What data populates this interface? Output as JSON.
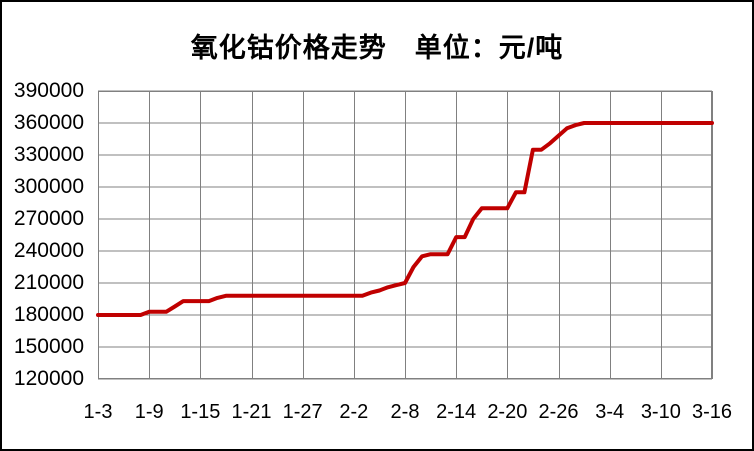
{
  "title": "氧化钴价格走势　单位：元/吨",
  "colors": {
    "line": "#C00000",
    "grid": "#808080",
    "plot_border": "#808080",
    "frame_border": "#000000",
    "background": "#FFFFFF",
    "text": "#000000"
  },
  "chart_data": {
    "type": "line",
    "title": "氧化钴价格走势　单位：元/吨",
    "unit": "元/吨",
    "xlabel": "",
    "ylabel": "",
    "ylim": [
      120000,
      390000
    ],
    "y_ticks": [
      120000,
      150000,
      180000,
      210000,
      240000,
      270000,
      300000,
      330000,
      360000,
      390000
    ],
    "y_tick_labels": [
      "120000",
      "150000",
      "180000",
      "210000",
      "240000",
      "270000",
      "300000",
      "330000",
      "360000",
      "390000"
    ],
    "x_tick_labels": [
      "1-3",
      "1-9",
      "1-15",
      "1-21",
      "1-27",
      "2-2",
      "2-8",
      "2-14",
      "2-20",
      "2-26",
      "3-4",
      "3-10",
      "3-16"
    ],
    "x_tick_interval_days": 6,
    "grid": true,
    "legend": false,
    "series": [
      {
        "name": "氧化钴价格",
        "x": [
          "1-3",
          "1-4",
          "1-5",
          "1-6",
          "1-7",
          "1-8",
          "1-9",
          "1-10",
          "1-11",
          "1-12",
          "1-13",
          "1-14",
          "1-15",
          "1-16",
          "1-17",
          "1-18",
          "1-19",
          "1-20",
          "1-21",
          "1-22",
          "1-23",
          "1-24",
          "1-25",
          "1-26",
          "1-27",
          "1-28",
          "1-29",
          "1-30",
          "1-31",
          "2-1",
          "2-2",
          "2-3",
          "2-4",
          "2-5",
          "2-6",
          "2-7",
          "2-8",
          "2-9",
          "2-10",
          "2-11",
          "2-12",
          "2-13",
          "2-14",
          "2-15",
          "2-16",
          "2-17",
          "2-18",
          "2-19",
          "2-20",
          "2-21",
          "2-22",
          "2-23",
          "2-24",
          "2-25",
          "2-26",
          "2-27",
          "2-28",
          "3-1",
          "3-2",
          "3-3",
          "3-4",
          "3-5",
          "3-6",
          "3-7",
          "3-8",
          "3-9",
          "3-10",
          "3-11",
          "3-12",
          "3-13",
          "3-14",
          "3-15",
          "3-16"
        ],
        "values": [
          180000,
          180000,
          180000,
          180000,
          180000,
          180000,
          183000,
          183000,
          183000,
          188000,
          193000,
          193000,
          193000,
          193000,
          196000,
          198000,
          198000,
          198000,
          198000,
          198000,
          198000,
          198000,
          198000,
          198000,
          198000,
          198000,
          198000,
          198000,
          198000,
          198000,
          198000,
          198000,
          201000,
          203000,
          206000,
          208000,
          210000,
          225000,
          235000,
          237000,
          237000,
          237000,
          253000,
          253000,
          270000,
          280000,
          280000,
          280000,
          280000,
          295000,
          295000,
          335000,
          335000,
          341000,
          348000,
          355000,
          358000,
          360000,
          360000,
          360000,
          360000,
          360000,
          360000,
          360000,
          360000,
          360000,
          360000,
          360000,
          360000,
          360000,
          360000,
          360000,
          360000
        ]
      }
    ]
  }
}
